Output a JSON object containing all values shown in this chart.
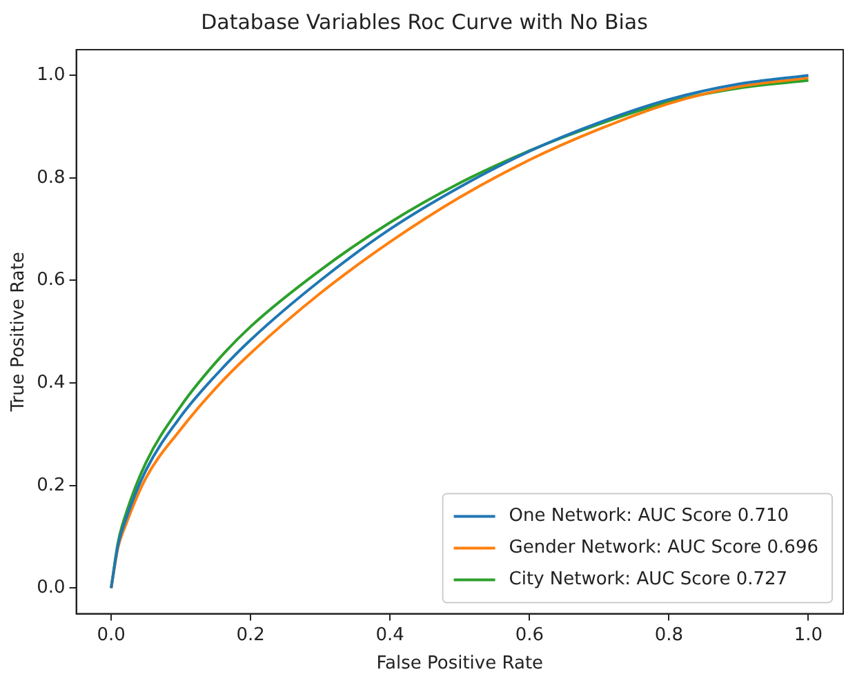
{
  "chart_data": {
    "type": "line",
    "title": "Database Variables Roc Curve with No Bias",
    "xlabel": "False Positive Rate",
    "ylabel": "True Positive Rate",
    "x": [
      0,
      0.01,
      0.02,
      0.05,
      0.1,
      0.15,
      0.2,
      0.3,
      0.4,
      0.5,
      0.6,
      0.7,
      0.8,
      0.9,
      1
    ],
    "series": [
      {
        "name": "One Network: AUC Score 0.710",
        "color": "#1f77b4",
        "values": [
          0,
          0.085,
          0.13,
          0.23,
          0.335,
          0.415,
          0.484,
          0.6,
          0.7,
          0.782,
          0.852,
          0.908,
          0.953,
          0.983,
          1.0
        ]
      },
      {
        "name": "Gender Network: AUC Score 0.696",
        "color": "#ff7f0e",
        "values": [
          0,
          0.08,
          0.12,
          0.215,
          0.31,
          0.39,
          0.458,
          0.575,
          0.675,
          0.762,
          0.835,
          0.895,
          0.945,
          0.978,
          0.995
        ]
      },
      {
        "name": "City Network: AUC Score 0.727",
        "color": "#2ca02c",
        "values": [
          0,
          0.09,
          0.14,
          0.245,
          0.355,
          0.44,
          0.51,
          0.62,
          0.713,
          0.79,
          0.853,
          0.905,
          0.948,
          0.975,
          0.99
        ]
      }
    ],
    "xlim": [
      -0.05,
      1.05
    ],
    "ylim": [
      -0.05,
      1.05
    ],
    "xticks": [
      {
        "value": 0,
        "label": "0.0"
      },
      {
        "value": 0.2,
        "label": "0.2"
      },
      {
        "value": 0.4,
        "label": "0.4"
      },
      {
        "value": 0.6,
        "label": "0.6"
      },
      {
        "value": 0.8,
        "label": "0.8"
      },
      {
        "value": 1,
        "label": "1.0"
      }
    ],
    "yticks": [
      {
        "value": 0,
        "label": "0.0"
      },
      {
        "value": 0.2,
        "label": "0.2"
      },
      {
        "value": 0.4,
        "label": "0.4"
      },
      {
        "value": 0.6,
        "label": "0.6"
      },
      {
        "value": 0.8,
        "label": "0.8"
      },
      {
        "value": 1,
        "label": "1.0"
      }
    ],
    "grid": false,
    "legend": "bottom right",
    "marker": "none",
    "line_style": "solid"
  }
}
